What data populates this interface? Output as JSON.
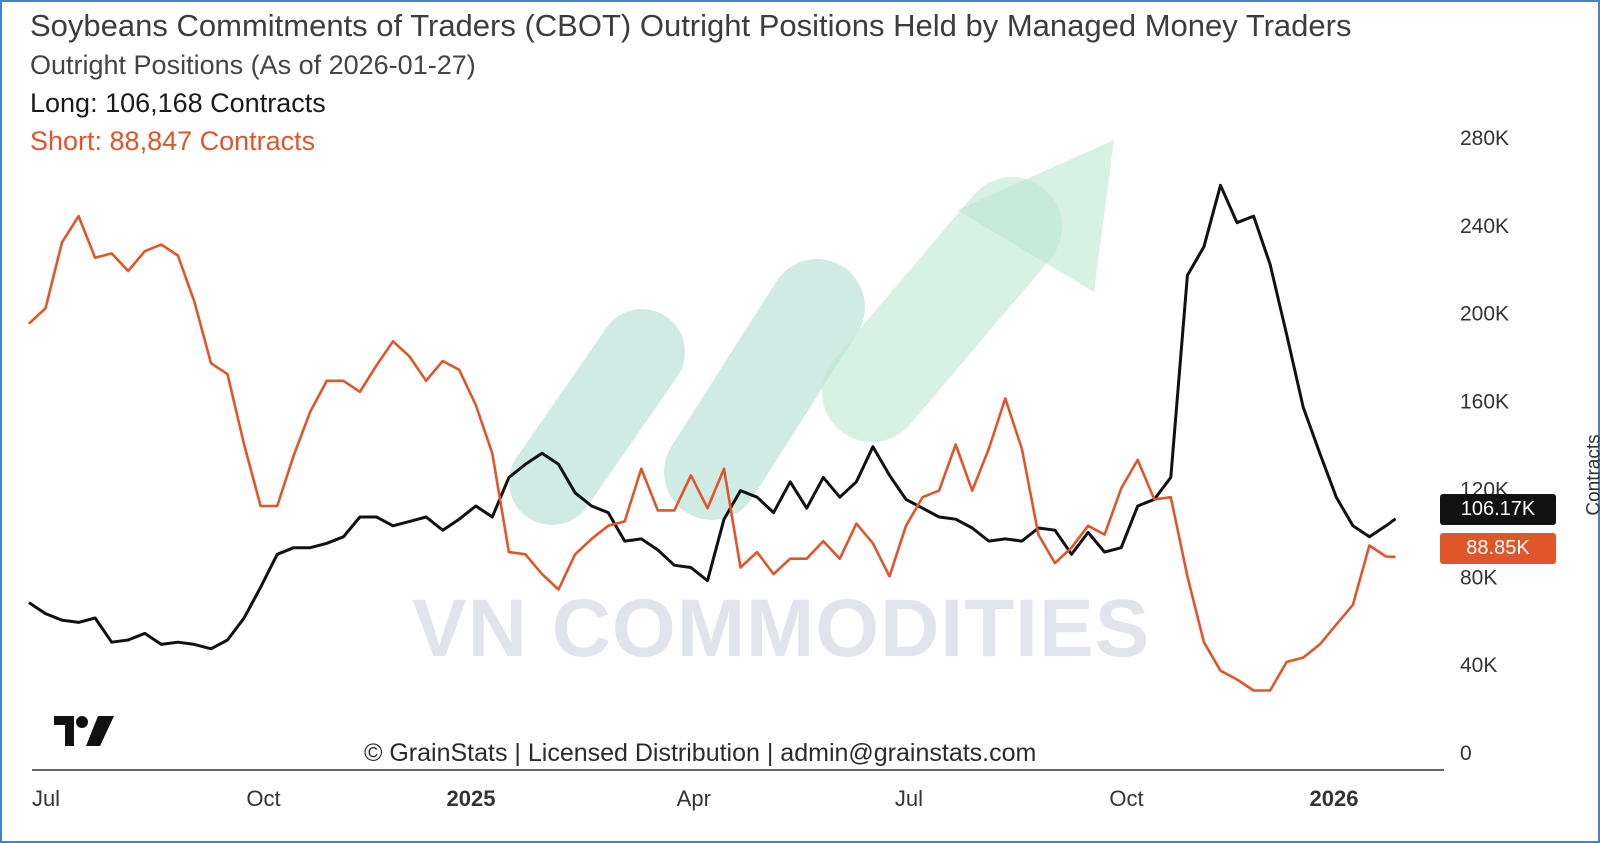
{
  "header": {
    "title": "Soybeans Commitments of Traders (CBOT) Outright Positions Held by Managed Money Traders",
    "subtitle": "Outright Positions (As of 2026-01-27)",
    "long_label": "Long: 106,168 Contracts",
    "short_label": "Short: 88,847 Contracts"
  },
  "watermark": {
    "text": "VN COMMODITIES",
    "color": "#dde0e8",
    "arrow_color": "#bde8d4",
    "stripe_color": "#bfe5dc"
  },
  "footer": {
    "credit": "© GrainStats | Licensed Distribution | admin@grainstats.com"
  },
  "logo": {
    "icon": "tradingview-logo-icon"
  },
  "badges": {
    "long": "106.17K",
    "short": "88.85K"
  },
  "colors": {
    "long": "#111111",
    "short": "#e0562a",
    "axis": "#333333",
    "text": "#333333"
  },
  "chart_data": {
    "type": "line",
    "title": "Soybeans Commitments of Traders (CBOT) Outright Positions Held by Managed Money Traders",
    "ylabel": "Contracts",
    "ylim": [
      0,
      280000
    ],
    "yticks": [
      {
        "value": 0,
        "label": "0"
      },
      {
        "value": 40000,
        "label": "40K"
      },
      {
        "value": 80000,
        "label": "80K"
      },
      {
        "value": 120000,
        "label": "120K"
      },
      {
        "value": 160000,
        "label": "160K"
      },
      {
        "value": 200000,
        "label": "200K"
      },
      {
        "value": 240000,
        "label": "240K"
      },
      {
        "value": 280000,
        "label": "280K"
      }
    ],
    "x_range": [
      "2024-07-01",
      "2026-02-03"
    ],
    "xticks": [
      {
        "date": "2024-07-01",
        "label": "Jul",
        "bold": false
      },
      {
        "date": "2024-10-01",
        "label": "Oct",
        "bold": false
      },
      {
        "date": "2025-01-01",
        "label": "2025",
        "bold": true
      },
      {
        "date": "2025-04-01",
        "label": "Apr",
        "bold": false
      },
      {
        "date": "2025-07-01",
        "label": "Jul",
        "bold": false
      },
      {
        "date": "2025-10-01",
        "label": "Oct",
        "bold": false
      },
      {
        "date": "2026-01-01",
        "label": "2026",
        "bold": true
      }
    ],
    "legend": "top-left",
    "grid": false,
    "series": [
      {
        "name": "Long",
        "color": "#111111",
        "points": [
          [
            "2024-06-28",
            68000
          ],
          [
            "2024-07-05",
            63000
          ],
          [
            "2024-07-12",
            60000
          ],
          [
            "2024-07-19",
            59000
          ],
          [
            "2024-07-26",
            61000
          ],
          [
            "2024-08-02",
            50000
          ],
          [
            "2024-08-09",
            51000
          ],
          [
            "2024-08-16",
            54000
          ],
          [
            "2024-08-23",
            49000
          ],
          [
            "2024-08-30",
            50000
          ],
          [
            "2024-09-06",
            49000
          ],
          [
            "2024-09-13",
            47000
          ],
          [
            "2024-09-20",
            51000
          ],
          [
            "2024-09-27",
            61000
          ],
          [
            "2024-10-04",
            75000
          ],
          [
            "2024-10-11",
            90000
          ],
          [
            "2024-10-18",
            93000
          ],
          [
            "2024-10-25",
            93000
          ],
          [
            "2024-11-01",
            95000
          ],
          [
            "2024-11-08",
            98000
          ],
          [
            "2024-11-15",
            107000
          ],
          [
            "2024-11-22",
            107000
          ],
          [
            "2024-11-29",
            103000
          ],
          [
            "2024-12-06",
            105000
          ],
          [
            "2024-12-13",
            107000
          ],
          [
            "2024-12-20",
            101000
          ],
          [
            "2024-12-27",
            106000
          ],
          [
            "2025-01-03",
            112000
          ],
          [
            "2025-01-10",
            107000
          ],
          [
            "2025-01-17",
            125000
          ],
          [
            "2025-01-24",
            131000
          ],
          [
            "2025-01-31",
            136000
          ],
          [
            "2025-02-07",
            131000
          ],
          [
            "2025-02-14",
            118000
          ],
          [
            "2025-02-21",
            112000
          ],
          [
            "2025-02-28",
            109000
          ],
          [
            "2025-03-07",
            96000
          ],
          [
            "2025-03-14",
            97000
          ],
          [
            "2025-03-21",
            92000
          ],
          [
            "2025-03-28",
            85000
          ],
          [
            "2025-04-04",
            84000
          ],
          [
            "2025-04-11",
            78000
          ],
          [
            "2025-04-18",
            106000
          ],
          [
            "2025-04-25",
            119000
          ],
          [
            "2025-05-02",
            116000
          ],
          [
            "2025-05-09",
            109000
          ],
          [
            "2025-05-16",
            123000
          ],
          [
            "2025-05-23",
            111000
          ],
          [
            "2025-05-30",
            125000
          ],
          [
            "2025-06-06",
            116000
          ],
          [
            "2025-06-13",
            123000
          ],
          [
            "2025-06-20",
            139000
          ],
          [
            "2025-06-27",
            126000
          ],
          [
            "2025-07-04",
            115000
          ],
          [
            "2025-07-11",
            111000
          ],
          [
            "2025-07-18",
            107000
          ],
          [
            "2025-07-25",
            106000
          ],
          [
            "2025-08-01",
            102000
          ],
          [
            "2025-08-08",
            96000
          ],
          [
            "2025-08-15",
            97000
          ],
          [
            "2025-08-22",
            96000
          ],
          [
            "2025-08-29",
            102000
          ],
          [
            "2025-09-05",
            101000
          ],
          [
            "2025-09-12",
            90000
          ],
          [
            "2025-09-19",
            100000
          ],
          [
            "2025-09-26",
            91000
          ],
          [
            "2025-10-03",
            93000
          ],
          [
            "2025-10-10",
            112000
          ],
          [
            "2025-10-17",
            115000
          ],
          [
            "2025-10-24",
            125000
          ],
          [
            "2025-10-31",
            217000
          ],
          [
            "2025-11-07",
            230000
          ],
          [
            "2025-11-14",
            258000
          ],
          [
            "2025-11-21",
            241000
          ],
          [
            "2025-11-28",
            244000
          ],
          [
            "2025-12-05",
            222000
          ],
          [
            "2025-12-12",
            190000
          ],
          [
            "2025-12-19",
            157000
          ],
          [
            "2025-12-26",
            136000
          ],
          [
            "2026-01-02",
            116000
          ],
          [
            "2026-01-09",
            103000
          ],
          [
            "2026-01-16",
            98000
          ],
          [
            "2026-01-23",
            103000
          ],
          [
            "2026-01-27",
            106168
          ]
        ]
      },
      {
        "name": "Short",
        "color": "#e0562a",
        "points": [
          [
            "2024-06-28",
            195000
          ],
          [
            "2024-07-05",
            202000
          ],
          [
            "2024-07-12",
            232000
          ],
          [
            "2024-07-19",
            244000
          ],
          [
            "2024-07-26",
            225000
          ],
          [
            "2024-08-02",
            227000
          ],
          [
            "2024-08-09",
            219000
          ],
          [
            "2024-08-16",
            228000
          ],
          [
            "2024-08-23",
            231000
          ],
          [
            "2024-08-30",
            226000
          ],
          [
            "2024-09-06",
            205000
          ],
          [
            "2024-09-13",
            177000
          ],
          [
            "2024-09-20",
            172000
          ],
          [
            "2024-09-27",
            140000
          ],
          [
            "2024-10-04",
            112000
          ],
          [
            "2024-10-11",
            112000
          ],
          [
            "2024-10-18",
            135000
          ],
          [
            "2024-10-25",
            155000
          ],
          [
            "2024-11-01",
            169000
          ],
          [
            "2024-11-08",
            169000
          ],
          [
            "2024-11-15",
            164000
          ],
          [
            "2024-11-22",
            176000
          ],
          [
            "2024-11-29",
            187000
          ],
          [
            "2024-12-06",
            180000
          ],
          [
            "2024-12-13",
            169000
          ],
          [
            "2024-12-20",
            178000
          ],
          [
            "2024-12-27",
            174000
          ],
          [
            "2025-01-03",
            158000
          ],
          [
            "2025-01-10",
            136000
          ],
          [
            "2025-01-17",
            91000
          ],
          [
            "2025-01-24",
            90000
          ],
          [
            "2025-01-31",
            81000
          ],
          [
            "2025-02-07",
            74000
          ],
          [
            "2025-02-14",
            90000
          ],
          [
            "2025-02-21",
            97000
          ],
          [
            "2025-02-28",
            103000
          ],
          [
            "2025-03-07",
            105000
          ],
          [
            "2025-03-14",
            129000
          ],
          [
            "2025-03-21",
            110000
          ],
          [
            "2025-03-28",
            110000
          ],
          [
            "2025-04-04",
            126000
          ],
          [
            "2025-04-11",
            111000
          ],
          [
            "2025-04-18",
            129000
          ],
          [
            "2025-04-25",
            84000
          ],
          [
            "2025-05-02",
            91000
          ],
          [
            "2025-05-09",
            81000
          ],
          [
            "2025-05-16",
            88000
          ],
          [
            "2025-05-23",
            88000
          ],
          [
            "2025-05-30",
            96000
          ],
          [
            "2025-06-06",
            88000
          ],
          [
            "2025-06-13",
            104000
          ],
          [
            "2025-06-20",
            95000
          ],
          [
            "2025-06-27",
            80000
          ],
          [
            "2025-07-04",
            103000
          ],
          [
            "2025-07-11",
            116000
          ],
          [
            "2025-07-18",
            119000
          ],
          [
            "2025-07-25",
            140000
          ],
          [
            "2025-08-01",
            119000
          ],
          [
            "2025-08-08",
            138000
          ],
          [
            "2025-08-15",
            161000
          ],
          [
            "2025-08-22",
            138000
          ],
          [
            "2025-08-29",
            99000
          ],
          [
            "2025-09-05",
            86000
          ],
          [
            "2025-09-12",
            93000
          ],
          [
            "2025-09-19",
            103000
          ],
          [
            "2025-09-26",
            99000
          ],
          [
            "2025-10-03",
            120000
          ],
          [
            "2025-10-10",
            133000
          ],
          [
            "2025-10-17",
            115000
          ],
          [
            "2025-10-24",
            116000
          ],
          [
            "2025-10-31",
            80000
          ],
          [
            "2025-11-07",
            50000
          ],
          [
            "2025-11-14",
            37000
          ],
          [
            "2025-11-21",
            33000
          ],
          [
            "2025-11-28",
            28000
          ],
          [
            "2025-12-05",
            28000
          ],
          [
            "2025-12-12",
            41000
          ],
          [
            "2025-12-19",
            43000
          ],
          [
            "2025-12-26",
            49000
          ],
          [
            "2026-01-02",
            58000
          ],
          [
            "2026-01-09",
            67000
          ],
          [
            "2026-01-16",
            94000
          ],
          [
            "2026-01-23",
            89000
          ],
          [
            "2026-01-27",
            88847
          ]
        ]
      }
    ]
  }
}
